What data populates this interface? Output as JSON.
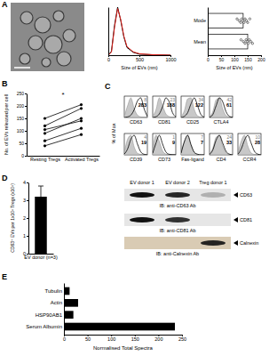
{
  "chart_data": [
    {
      "type": "line",
      "x": [
        0,
        50,
        100,
        150,
        200,
        250,
        300,
        400,
        500,
        700,
        1000
      ],
      "series": [
        {
          "color": "#000000",
          "values": [
            0,
            8,
            62,
            100,
            72,
            38,
            16,
            6,
            2,
            1,
            0
          ]
        },
        {
          "color": "#e0201b",
          "values": [
            0,
            6,
            58,
            97,
            74,
            40,
            18,
            7,
            3,
            1,
            0
          ]
        }
      ],
      "xlim": [
        0,
        1000
      ],
      "ylim": [
        0,
        100
      ],
      "xticks": [
        0,
        500,
        1000
      ],
      "xlabel": "Size of EVs (nm)",
      "tick_labels": "x"
    },
    {
      "type": "bar",
      "orientation": "horizontal",
      "categories": [
        "Mode",
        "Mean"
      ],
      "values": [
        133,
        150
      ],
      "points": [
        [
          110,
          118,
          124,
          128,
          132,
          136,
          140,
          145,
          150,
          158
        ],
        [
          125,
          134,
          140,
          144,
          148,
          152,
          156,
          162,
          168
        ]
      ],
      "color": "#ffffff",
      "xlim": [
        0,
        200
      ],
      "xticks": [
        0,
        50,
        100,
        150,
        200
      ],
      "xlabel": "Size of EVs (nm)"
    },
    {
      "type": "line",
      "categories": [
        "Resting Tregs",
        "Activated Tregs"
      ],
      "series": [
        {
          "color": "#000000",
          "values": [
            40,
            85
          ]
        },
        {
          "color": "#000000",
          "values": [
            60,
            110
          ]
        },
        {
          "color": "#000000",
          "values": [
            90,
            150
          ]
        },
        {
          "color": "#000000",
          "values": [
            105,
            140
          ]
        },
        {
          "color": "#000000",
          "values": [
            120,
            190
          ]
        },
        {
          "color": "#000000",
          "values": [
            150,
            205
          ]
        }
      ],
      "marker": "circle",
      "ylim": [
        0,
        250
      ],
      "yticks": [
        0,
        50,
        100,
        150,
        200,
        250
      ],
      "ylabel": "No. of EVs released per cell",
      "annotations": [
        "*"
      ]
    },
    {
      "type": "histogram",
      "ylabel": "% of Max",
      "ylim": [
        0,
        100
      ],
      "tick_labels": false,
      "panels": [
        {
          "label": "CD63",
          "numbers": [
            8,
            283
          ],
          "isotype": [
            5,
            60,
            100,
            45,
            12,
            3,
            1,
            0
          ],
          "stained": [
            0,
            3,
            12,
            40,
            85,
            100,
            45,
            5
          ]
        },
        {
          "label": "CD81",
          "numbers": [
            23,
            188
          ],
          "isotype": [
            4,
            40,
            100,
            60,
            18,
            5,
            1,
            0
          ],
          "stained": [
            0,
            4,
            18,
            55,
            100,
            80,
            25,
            3
          ]
        },
        {
          "label": "CD25",
          "numbers": [
            34,
            122
          ],
          "isotype": [
            3,
            35,
            95,
            100,
            40,
            8,
            2,
            0
          ],
          "stained": [
            0,
            6,
            25,
            70,
            100,
            60,
            15,
            2
          ]
        },
        {
          "label": "CTLA4",
          "numbers": [
            42,
            61
          ],
          "isotype": [
            2,
            30,
            90,
            100,
            45,
            10,
            2,
            0
          ],
          "stained": [
            1,
            15,
            60,
            100,
            80,
            30,
            6,
            1
          ]
        },
        {
          "label": "CD39",
          "numbers": [
            4,
            19
          ],
          "isotype": [
            10,
            80,
            100,
            40,
            8,
            2,
            0,
            0
          ],
          "stained": [
            4,
            30,
            80,
            100,
            55,
            15,
            3,
            0
          ]
        },
        {
          "label": "CD73",
          "numbers": [
            1,
            9
          ],
          "isotype": [
            20,
            100,
            70,
            20,
            4,
            1,
            0,
            0
          ],
          "stained": [
            8,
            60,
            100,
            55,
            15,
            3,
            1,
            0
          ]
        },
        {
          "label": "Fas-ligand",
          "numbers": [
            7,
            7
          ],
          "isotype": [
            10,
            70,
            100,
            50,
            12,
            3,
            0,
            0
          ],
          "stained": [
            9,
            68,
            100,
            52,
            13,
            3,
            0,
            0
          ]
        },
        {
          "label": "CD4",
          "numbers": [
            24,
            33
          ],
          "isotype": [
            3,
            35,
            90,
            100,
            45,
            10,
            2,
            0
          ],
          "stained": [
            2,
            25,
            75,
            100,
            60,
            18,
            4,
            0
          ]
        },
        {
          "label": "CCR4",
          "numbers": [
            10,
            28
          ],
          "isotype": [
            8,
            70,
            100,
            45,
            10,
            2,
            0,
            0
          ],
          "stained": [
            3,
            30,
            75,
            100,
            60,
            18,
            4,
            0
          ]
        }
      ]
    },
    {
      "type": "bar",
      "categories": [
        "EV donor (n=3)"
      ],
      "values": [
        3.2
      ],
      "error": [
        0.6
      ],
      "color": "#000000",
      "ylim": [
        0,
        4
      ],
      "yticks": [
        0,
        1,
        2,
        3,
        4
      ],
      "ylabel": "CD63⁺ EVs per 1x10⁶ Tregs (x10⁸)"
    },
    {
      "type": "bar",
      "orientation": "horizontal",
      "categories": [
        "Tubulin",
        "Actin",
        "HSP90AB1",
        "Serum Albumin"
      ],
      "values": [
        12,
        30,
        20,
        235
      ],
      "color": "#000000",
      "xlim": [
        0,
        250
      ],
      "xticks": [
        0,
        50,
        100,
        150,
        200,
        250
      ],
      "xlabel": "Normalised Total Spectra"
    }
  ],
  "panel_labels": [
    "A",
    "B",
    "C",
    "D",
    "E"
  ],
  "blots": {
    "lanes": [
      "EV donor 1",
      "EV donor 2",
      "Treg donor 1"
    ],
    "rows": [
      {
        "ib": "IB: anti-CD63 Ab",
        "marker": "CD63",
        "bands": [
          1,
          0.9,
          0.25
        ]
      },
      {
        "ib": "IB: anti-CD81 Ab",
        "marker": "CD81",
        "bands": [
          1,
          0.85,
          0
        ]
      },
      {
        "ib": "IB: anti-Calnexin Ab",
        "marker": "Calnexin",
        "bands": [
          0,
          0,
          0.9
        ]
      }
    ]
  }
}
